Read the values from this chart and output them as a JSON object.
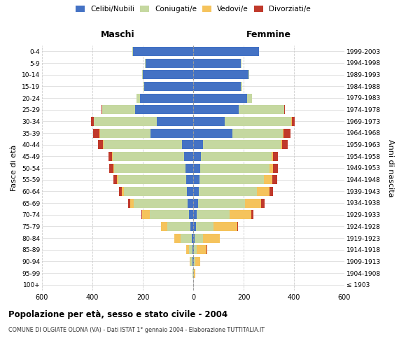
{
  "age_groups": [
    "100+",
    "95-99",
    "90-94",
    "85-89",
    "80-84",
    "75-79",
    "70-74",
    "65-69",
    "60-64",
    "55-59",
    "50-54",
    "45-49",
    "40-44",
    "35-39",
    "30-34",
    "25-29",
    "20-24",
    "15-19",
    "10-14",
    "5-9",
    "0-4"
  ],
  "birth_years": [
    "≤ 1903",
    "1904-1908",
    "1909-1913",
    "1914-1918",
    "1919-1923",
    "1924-1928",
    "1929-1933",
    "1934-1938",
    "1939-1943",
    "1944-1948",
    "1949-1953",
    "1954-1958",
    "1959-1963",
    "1964-1968",
    "1969-1973",
    "1974-1978",
    "1979-1983",
    "1984-1988",
    "1989-1993",
    "1994-1998",
    "1999-2003"
  ],
  "maschi": {
    "celibi": [
      0,
      0,
      2,
      3,
      5,
      12,
      18,
      22,
      25,
      28,
      30,
      35,
      45,
      170,
      145,
      230,
      210,
      195,
      200,
      190,
      240
    ],
    "coniugati": [
      0,
      2,
      8,
      15,
      45,
      90,
      155,
      215,
      250,
      270,
      285,
      285,
      310,
      200,
      250,
      130,
      15,
      3,
      2,
      1,
      1
    ],
    "vedovi": [
      0,
      1,
      4,
      10,
      25,
      25,
      30,
      12,
      8,
      5,
      3,
      2,
      2,
      1,
      0,
      0,
      0,
      0,
      0,
      0,
      0
    ],
    "divorziati": [
      0,
      0,
      0,
      1,
      1,
      2,
      3,
      8,
      12,
      15,
      15,
      15,
      20,
      25,
      10,
      3,
      1,
      0,
      0,
      0,
      0
    ]
  },
  "femmine": {
    "nubili": [
      0,
      0,
      3,
      4,
      5,
      10,
      15,
      20,
      22,
      25,
      28,
      30,
      38,
      155,
      125,
      180,
      215,
      190,
      220,
      190,
      260
    ],
    "coniugate": [
      0,
      2,
      5,
      10,
      35,
      70,
      130,
      185,
      230,
      255,
      275,
      280,
      310,
      200,
      265,
      180,
      18,
      4,
      2,
      1,
      1
    ],
    "vedove": [
      1,
      5,
      20,
      40,
      65,
      95,
      85,
      65,
      50,
      35,
      15,
      8,
      5,
      3,
      2,
      1,
      0,
      0,
      0,
      0,
      0
    ],
    "divorziate": [
      0,
      0,
      0,
      1,
      1,
      3,
      8,
      12,
      15,
      18,
      18,
      18,
      22,
      28,
      12,
      3,
      1,
      0,
      0,
      0,
      0
    ]
  },
  "colors": {
    "celibi": "#4472c4",
    "coniugati": "#c5d8a0",
    "vedovi": "#f5c35c",
    "divorziati": "#c0392b"
  },
  "xlim": 600,
  "title": "Popolazione per età, sesso e stato civile - 2004",
  "subtitle": "COMUNE DI OLGIATE OLONA (VA) - Dati ISTAT 1° gennaio 2004 - Elaborazione TUTTITALIA.IT",
  "ylabel_left": "Fasce di età",
  "ylabel_right": "Anni di nascita",
  "xlabel_maschi": "Maschi",
  "xlabel_femmine": "Femmine",
  "legend_labels": [
    "Celibi/Nubili",
    "Coniugati/e",
    "Vedovi/e",
    "Divorziati/e"
  ],
  "bg_color": "#ffffff",
  "grid_color": "#cccccc"
}
